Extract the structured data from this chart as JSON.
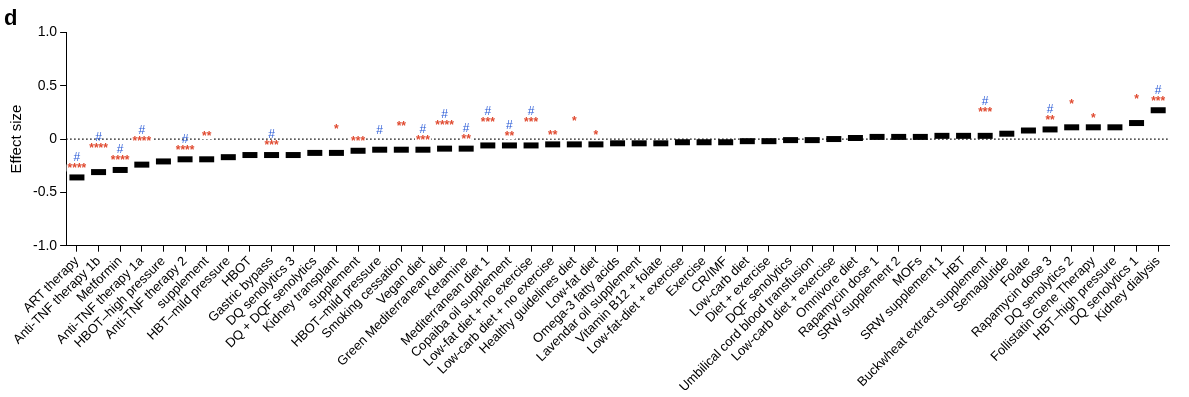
{
  "chart_data": {
    "type": "scatter",
    "title": "d",
    "ylabel": "Effect size",
    "categories": [
      "ART therapy",
      "Anti-TNF therapy 1b",
      "Metformin",
      "Anti-TNF therapy 1a",
      "HBOT–high pressure",
      "Anti-TNF therapy 2",
      "supplement",
      "HBT–mild pressure",
      "HBOT",
      "Gastric bypass",
      "DQ senolytics 3",
      "DQ + DQF senolytics",
      "Kidney transplant",
      "supplement",
      "HBOT–mild pressure",
      "Smoking cessation",
      "Vegan diet",
      "Green Mediterranean diet",
      "Ketamine",
      "Mediterranean diet 1",
      "Copaiba oil supplement",
      "Low-fat diet + no exercise",
      "Low-carb diet + no exercise",
      "Healthy guidelines diet",
      "Low-fat diet",
      "Omega-3 fatty acids",
      "Lavendar oil supplement",
      "Vitamin B12 + folate",
      "Low-fat-diet + exercise",
      "Exercise",
      "CR/IMF",
      "Low-carb diet",
      "Diet + exercise",
      "DQF senolytics",
      "Umbilical cord blood transfusion",
      "Low-carb diet + exercise",
      "Omnivore diet",
      "Rapamycin dose 1",
      "SRW supplement 2",
      "MOFs",
      "SRW supplement 1",
      "HBT",
      "Buckwheat extract supplement",
      "Semaglutide",
      "Folate",
      "Rapamycin dose 3",
      "DQ senolytics 2",
      "Follistatin Gene Therapy",
      "HBT–high pressure",
      "DQ senolytics 1",
      "Kidney dialysis"
    ],
    "series": [
      {
        "color": "#000000",
        "values": [
          -0.36,
          -0.31,
          -0.29,
          -0.24,
          -0.21,
          -0.19,
          -0.19,
          -0.17,
          -0.15,
          -0.15,
          -0.15,
          -0.13,
          -0.13,
          -0.11,
          -0.1,
          -0.1,
          -0.1,
          -0.09,
          -0.09,
          -0.06,
          -0.06,
          -0.06,
          -0.05,
          -0.05,
          -0.05,
          -0.04,
          -0.04,
          -0.04,
          -0.03,
          -0.03,
          -0.03,
          -0.02,
          -0.02,
          -0.01,
          -0.01,
          0,
          0.01,
          0.02,
          0.02,
          0.02,
          0.03,
          0.03,
          0.03,
          0.05,
          0.08,
          0.09,
          0.11,
          0.11,
          0.11,
          0.15,
          0.27
        ],
        "value_labels": [
          "****",
          "****",
          "****",
          "****",
          null,
          "****",
          "**",
          null,
          null,
          "***",
          null,
          null,
          "*",
          "***",
          null,
          "**",
          "***",
          "****",
          "**",
          "***",
          "**",
          "***",
          "**",
          "*",
          "*",
          null,
          null,
          null,
          null,
          null,
          null,
          null,
          null,
          null,
          null,
          null,
          null,
          null,
          null,
          null,
          null,
          null,
          "***",
          null,
          null,
          "**",
          "*",
          "*",
          null,
          "*",
          "***"
        ]
      }
    ],
    "marker": "square",
    "ylim": [
      -1,
      1
    ],
    "yticks": [
      {
        "value": -1,
        "label": "-1.0"
      },
      -0.5,
      0,
      0.5,
      {
        "value": 1,
        "label": "1.0"
      }
    ],
    "ref_lines": [
      {
        "axis": "y",
        "value": 0,
        "line_style": "dotted",
        "color": "#000000"
      }
    ],
    "annotations": [
      {
        "text": "#",
        "x": "ART therapy",
        "y": -0.36
      },
      {
        "text": "#",
        "x": "Anti-TNF therapy 1b",
        "y": -0.31
      },
      {
        "text": "#",
        "x": "Metformin",
        "y": -0.29
      },
      {
        "text": "#",
        "x": "Anti-TNF therapy 1a",
        "y": -0.24
      },
      {
        "text": "#",
        "x": "Anti-TNF therapy 2",
        "y": -0.19
      },
      {
        "text": "#",
        "x": "Gastric bypass",
        "y": -0.15
      },
      {
        "text": "#",
        "x": "HBOT–mild pressure",
        "y": -0.11
      },
      {
        "text": "#",
        "x": "Vegan diet",
        "y": -0.1
      },
      {
        "text": "#",
        "x": "Green Mediterranean diet",
        "y": -0.09
      },
      {
        "text": "#",
        "x": "Ketamine",
        "y": -0.09
      },
      {
        "text": "#",
        "x": "Mediterranean diet 1",
        "y": -0.06
      },
      {
        "text": "#",
        "x": "Copaiba oil supplement",
        "y": -0.06
      },
      {
        "text": "#",
        "x": "Low-fat diet + no exercise",
        "y": -0.06
      },
      {
        "text": "#",
        "x": "Buckwheat extract supplement",
        "y": 0.03
      },
      {
        "text": "#",
        "x": "Rapamycin dose 3",
        "y": 0.09
      },
      {
        "text": "#",
        "x": "Kidney dialysis",
        "y": 0.27
      }
    ],
    "grid": false,
    "legend": false
  }
}
